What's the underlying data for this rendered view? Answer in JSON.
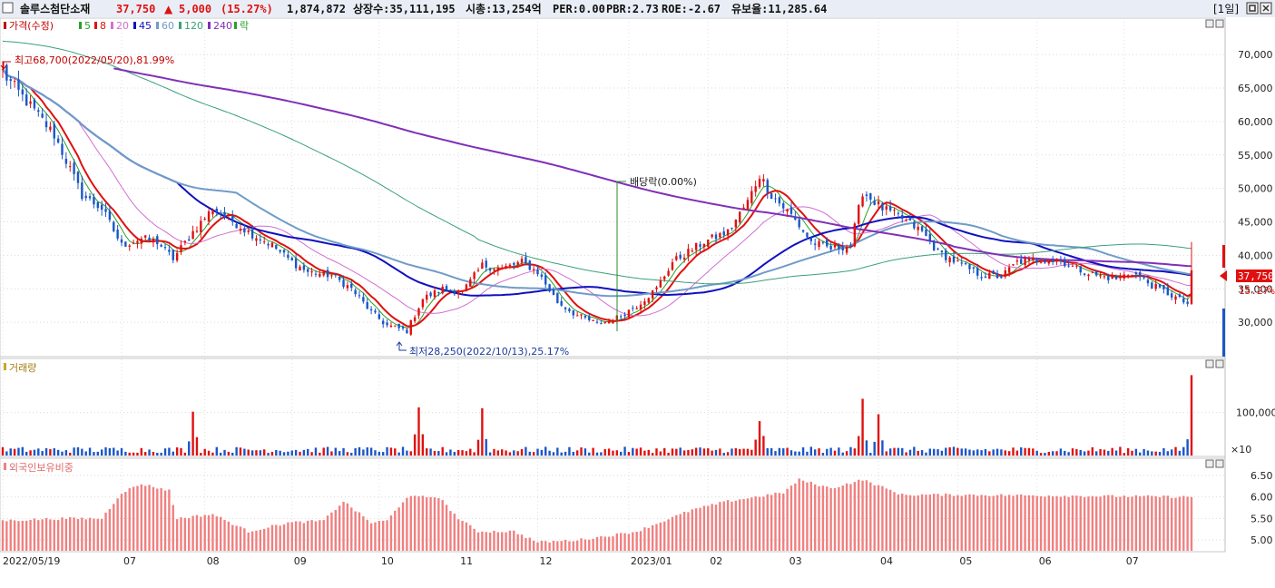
{
  "header": {
    "name": "솔루스첨단소재",
    "price": "37,750",
    "arrow": "▲",
    "change": "5,000",
    "change_pct": "(15.27%)",
    "volume": "1,874,872",
    "listed": "상장수:35,111,195",
    "marketcap": "시총:13,254억",
    "per": "PER:0.00",
    "pbr": "PBR:2.73",
    "roe": "ROE:-2.67",
    "float": "유보율:11,285.64",
    "period": "[1일]"
  },
  "legend": {
    "price": "가격(수정)",
    "ma5": "5",
    "ma8": "8",
    "ma20": "20",
    "ma45": "45",
    "ma60": "60",
    "ma120": "120",
    "ma240": "240",
    "ex": "락"
  },
  "annotations": {
    "high": "최고68,700(2022/05/20),81.99%",
    "low": "최저28,250(2022/10/13),25.17%",
    "dividend": "배당락(0.00%)"
  },
  "price_tag": {
    "value": "37,750",
    "pct": "15.27%"
  },
  "volume_panel": {
    "title": "거래량",
    "unit": "×10"
  },
  "foreign_panel": {
    "title": "외국인보유비중"
  },
  "colors": {
    "up": "#e01010",
    "down": "#1a56c8",
    "ma5": "#2aa02a",
    "ma8": "#e01010",
    "ma20": "#d070d0",
    "ma45": "#1010c0",
    "ma60": "#6f9cc8",
    "ma120": "#3aa07a",
    "ma240": "#8030b8",
    "foreign": "#f08080"
  },
  "chart_data": [
    {
      "type": "candlestick",
      "title": "가격(수정)",
      "y_ticks": [
        "70,000",
        "65,000",
        "60,000",
        "55,000",
        "50,000",
        "45,000",
        "40,000",
        "35,000",
        "30,000"
      ],
      "ylim": [
        25000,
        73000
      ],
      "x_ticks": [
        "2022/05/19",
        "07",
        "08",
        "09",
        "10",
        "11",
        "12",
        "2023/01",
        "02",
        "03",
        "04",
        "05",
        "06",
        "07"
      ],
      "x_range": [
        "2022/05/19",
        "2023/07/27"
      ],
      "bars": 301,
      "close_anchors": [
        [
          "2022/05/19",
          67500
        ],
        [
          "2022/05/20",
          66500
        ],
        [
          "2022/05/27",
          63000
        ],
        [
          "2022/06/07",
          58000
        ],
        [
          "2022/06/17",
          49000
        ],
        [
          "2022/06/24",
          47000
        ],
        [
          "2022/07/01",
          41500
        ],
        [
          "2022/07/08",
          42500
        ],
        [
          "2022/07/14",
          42000
        ],
        [
          "2022/07/20",
          39500
        ],
        [
          "2022/07/27",
          43500
        ],
        [
          "2022/08/04",
          47000
        ],
        [
          "2022/08/10",
          45500
        ],
        [
          "2022/08/17",
          43500
        ],
        [
          "2022/08/26",
          41500
        ],
        [
          "2022/09/02",
          39000
        ],
        [
          "2022/09/08",
          37500
        ],
        [
          "2022/09/16",
          37000
        ],
        [
          "2022/09/23",
          35000
        ],
        [
          "2022/09/30",
          31500
        ],
        [
          "2022/10/07",
          29500
        ],
        [
          "2022/10/13",
          28750
        ],
        [
          "2022/10/20",
          33500
        ],
        [
          "2022/10/27",
          35000
        ],
        [
          "2022/11/03",
          34500
        ],
        [
          "2022/11/10",
          38500
        ],
        [
          "2022/11/17",
          38000
        ],
        [
          "2022/11/24",
          39000
        ],
        [
          "2022/12/01",
          37500
        ],
        [
          "2022/12/08",
          33000
        ],
        [
          "2022/12/15",
          31000
        ],
        [
          "2022/12/22",
          29800
        ],
        [
          "2022/12/28",
          30300
        ],
        [
          "2023/01/05",
          32500
        ],
        [
          "2023/01/12",
          35000
        ],
        [
          "2023/01/19",
          39000
        ],
        [
          "2023/01/30",
          42000
        ],
        [
          "2023/02/08",
          43500
        ],
        [
          "2023/02/15",
          48000
        ],
        [
          "2023/02/20",
          52000
        ],
        [
          "2023/02/24",
          49000
        ],
        [
          "2023/03/03",
          46000
        ],
        [
          "2023/03/10",
          42000
        ],
        [
          "2023/03/17",
          41000
        ],
        [
          "2023/03/24",
          41500
        ],
        [
          "2023/03/29",
          49500
        ],
        [
          "2023/04/05",
          47000
        ],
        [
          "2023/04/12",
          45500
        ],
        [
          "2023/04/19",
          43500
        ],
        [
          "2023/04/26",
          40500
        ],
        [
          "2023/05/04",
          38500
        ],
        [
          "2023/05/11",
          37000
        ],
        [
          "2023/05/18",
          36800
        ],
        [
          "2023/05/25",
          39000
        ],
        [
          "2023/06/01",
          39300
        ],
        [
          "2023/06/08",
          39500
        ],
        [
          "2023/06/15",
          38000
        ],
        [
          "2023/06/22",
          37000
        ],
        [
          "2023/06/29",
          36500
        ],
        [
          "2023/07/06",
          37500
        ],
        [
          "2023/07/13",
          35500
        ],
        [
          "2023/07/20",
          34000
        ],
        [
          "2023/07/26",
          32750
        ],
        [
          "2023/07/27",
          37750
        ]
      ],
      "high": {
        "value": 68700,
        "date": "2022/05/20",
        "pct": "81.99%"
      },
      "low": {
        "value": 28250,
        "date": "2022/10/13",
        "pct": "25.17%"
      },
      "last": {
        "close": 37750,
        "change": 5000,
        "change_pct": 15.27
      },
      "series": [
        {
          "name": "5",
          "period": 5
        },
        {
          "name": "8",
          "period": 8
        },
        {
          "name": "20",
          "period": 20
        },
        {
          "name": "45",
          "period": 45
        },
        {
          "name": "60",
          "period": 60
        },
        {
          "name": "120",
          "period": 120
        },
        {
          "name": "240",
          "period": 240
        }
      ]
    },
    {
      "type": "bar",
      "title": "거래량",
      "y_ticks": [
        "100,000"
      ],
      "unit": "×10",
      "spikes": [
        [
          "2022/07/28",
          102000
        ],
        [
          "2022/10/18",
          112000
        ],
        [
          "2022/11/10",
          110000
        ],
        [
          "2023/02/20",
          80000
        ],
        [
          "2023/03/29",
          132000
        ],
        [
          "2023/04/03",
          96000
        ],
        [
          "2023/07/27",
          187000
        ]
      ],
      "baseline": 12000
    },
    {
      "type": "bar",
      "title": "외국인보유비중",
      "y_ticks": [
        "6.50",
        "6.00",
        "5.50",
        "5.00"
      ],
      "ylim": [
        4.75,
        6.75
      ],
      "anchors": [
        [
          "2022/05/19",
          5.45
        ],
        [
          "2022/06/10",
          5.5
        ],
        [
          "2022/06/24",
          5.5
        ],
        [
          "2022/07/01",
          6.1
        ],
        [
          "2022/07/08",
          6.3
        ],
        [
          "2022/07/19",
          6.15
        ],
        [
          "2022/07/22",
          5.5
        ],
        [
          "2022/08/03",
          5.6
        ],
        [
          "2022/08/17",
          5.2
        ],
        [
          "2022/08/31",
          5.4
        ],
        [
          "2022/09/13",
          5.45
        ],
        [
          "2022/09/20",
          5.9
        ],
        [
          "2022/09/30",
          5.4
        ],
        [
          "2022/10/07",
          5.45
        ],
        [
          "2022/10/14",
          6.0
        ],
        [
          "2022/10/25",
          6.0
        ],
        [
          "2022/11/02",
          5.5
        ],
        [
          "2022/11/08",
          5.2
        ],
        [
          "2022/11/22",
          5.2
        ],
        [
          "2022/12/01",
          4.95
        ],
        [
          "2022/12/15",
          5.0
        ],
        [
          "2022/12/27",
          5.1
        ],
        [
          "2023/01/06",
          5.2
        ],
        [
          "2023/01/26",
          5.7
        ],
        [
          "2023/02/08",
          5.9
        ],
        [
          "2023/02/28",
          6.1
        ],
        [
          "2023/03/06",
          6.4
        ],
        [
          "2023/03/17",
          6.2
        ],
        [
          "2023/03/29",
          6.4
        ],
        [
          "2023/04/12",
          6.05
        ],
        [
          "2023/05/04",
          6.05
        ],
        [
          "2023/07/27",
          6.0
        ]
      ]
    }
  ]
}
